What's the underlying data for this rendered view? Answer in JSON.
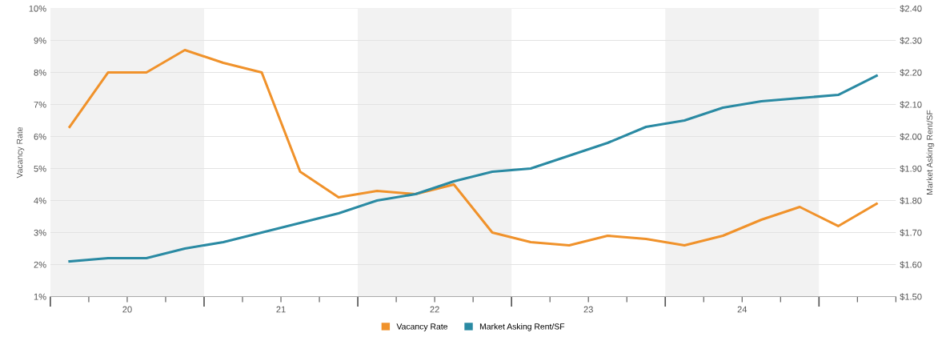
{
  "chart_data": {
    "type": "line",
    "x": [
      19.625,
      19.875,
      20.125,
      20.375,
      20.625,
      20.875,
      21.125,
      21.375,
      21.625,
      21.875,
      22.125,
      22.375,
      22.625,
      22.875,
      23.125,
      23.375,
      23.625,
      23.875,
      24.125,
      24.375,
      24.625,
      24.875
    ],
    "series": [
      {
        "name": "Vacancy Rate",
        "color": "#f0922b",
        "values": [
          6.3,
          8.0,
          8.0,
          8.7,
          8.3,
          8.0,
          4.9,
          4.1,
          4.3,
          4.2,
          4.5,
          3.0,
          2.7,
          2.6,
          2.9,
          2.8,
          2.6,
          2.9,
          3.4,
          3.8,
          3.2,
          3.9
        ]
      },
      {
        "name": "Market Asking Rent/SF",
        "color": "#2a8aa3",
        "axis": "y2",
        "values": [
          1.61,
          1.62,
          1.62,
          1.65,
          1.67,
          1.7,
          1.73,
          1.76,
          1.8,
          1.82,
          1.86,
          1.89,
          1.9,
          1.94,
          1.98,
          2.03,
          2.05,
          2.09,
          2.11,
          2.12,
          2.13,
          2.19
        ]
      }
    ],
    "ylabel": "Vacancy Rate",
    "y2label": "Market Asking Rent/SF",
    "xlim": [
      19.5,
      25
    ],
    "xticks": [
      {
        "value": 19.5,
        "label": null
      },
      {
        "value": 19.75,
        "label": null
      },
      20,
      {
        "value": 20.25,
        "label": null
      },
      {
        "value": 20.5,
        "label": null
      },
      {
        "value": 20.75,
        "label": null
      },
      21,
      {
        "value": 21.25,
        "label": null
      },
      {
        "value": 21.5,
        "label": null
      },
      {
        "value": 21.75,
        "label": null
      },
      22,
      {
        "value": 22.25,
        "label": null
      },
      {
        "value": 22.5,
        "label": null
      },
      {
        "value": 22.75,
        "label": null
      },
      23,
      {
        "value": 23.25,
        "label": null
      },
      {
        "value": 23.5,
        "label": null
      },
      {
        "value": 23.75,
        "label": null
      },
      24,
      {
        "value": 24.25,
        "label": null
      },
      {
        "value": 24.5,
        "label": null
      },
      {
        "value": 24.75,
        "label": null
      },
      {
        "value": 25,
        "label": null
      }
    ],
    "ylim": [
      1,
      10
    ],
    "yticks": [
      {
        "value": 1,
        "label": "1%"
      },
      {
        "value": 2,
        "label": "2%"
      },
      {
        "value": 3,
        "label": "3%"
      },
      {
        "value": 4,
        "label": "4%"
      },
      {
        "value": 5,
        "label": "5%"
      },
      {
        "value": 6,
        "label": "6%"
      },
      {
        "value": 7,
        "label": "7%"
      },
      {
        "value": 8,
        "label": "8%"
      },
      {
        "value": 9,
        "label": "9%"
      },
      {
        "value": 10,
        "label": "10%"
      }
    ],
    "y2lim": [
      1.5,
      2.4
    ],
    "y2ticks": [
      {
        "value": 1.5,
        "label": "$1.50"
      },
      {
        "value": 1.6,
        "label": "$1.60"
      },
      {
        "value": 1.7,
        "label": "$1.70"
      },
      {
        "value": 1.8,
        "label": "$1.80"
      },
      {
        "value": 1.9,
        "label": "$1.90"
      },
      {
        "value": 2.0,
        "label": "$2.00"
      },
      {
        "value": 2.1,
        "label": "$2.10"
      },
      {
        "value": 2.2,
        "label": "$2.20"
      },
      {
        "value": 2.3,
        "label": "$2.30"
      },
      {
        "value": 2.4,
        "label": "$2.40"
      }
    ],
    "bands": [
      {
        "axis": "x",
        "from": 19.5,
        "to": 20.5,
        "color": "#f2f2f2"
      },
      {
        "axis": "x",
        "from": 21.5,
        "to": 22.5,
        "color": "#f2f2f2"
      },
      {
        "axis": "x",
        "from": 23.5,
        "to": 24.5,
        "color": "#f2f2f2"
      }
    ],
    "grid": "y",
    "legend": "bottom",
    "marker": "none",
    "line_style": "solid"
  }
}
